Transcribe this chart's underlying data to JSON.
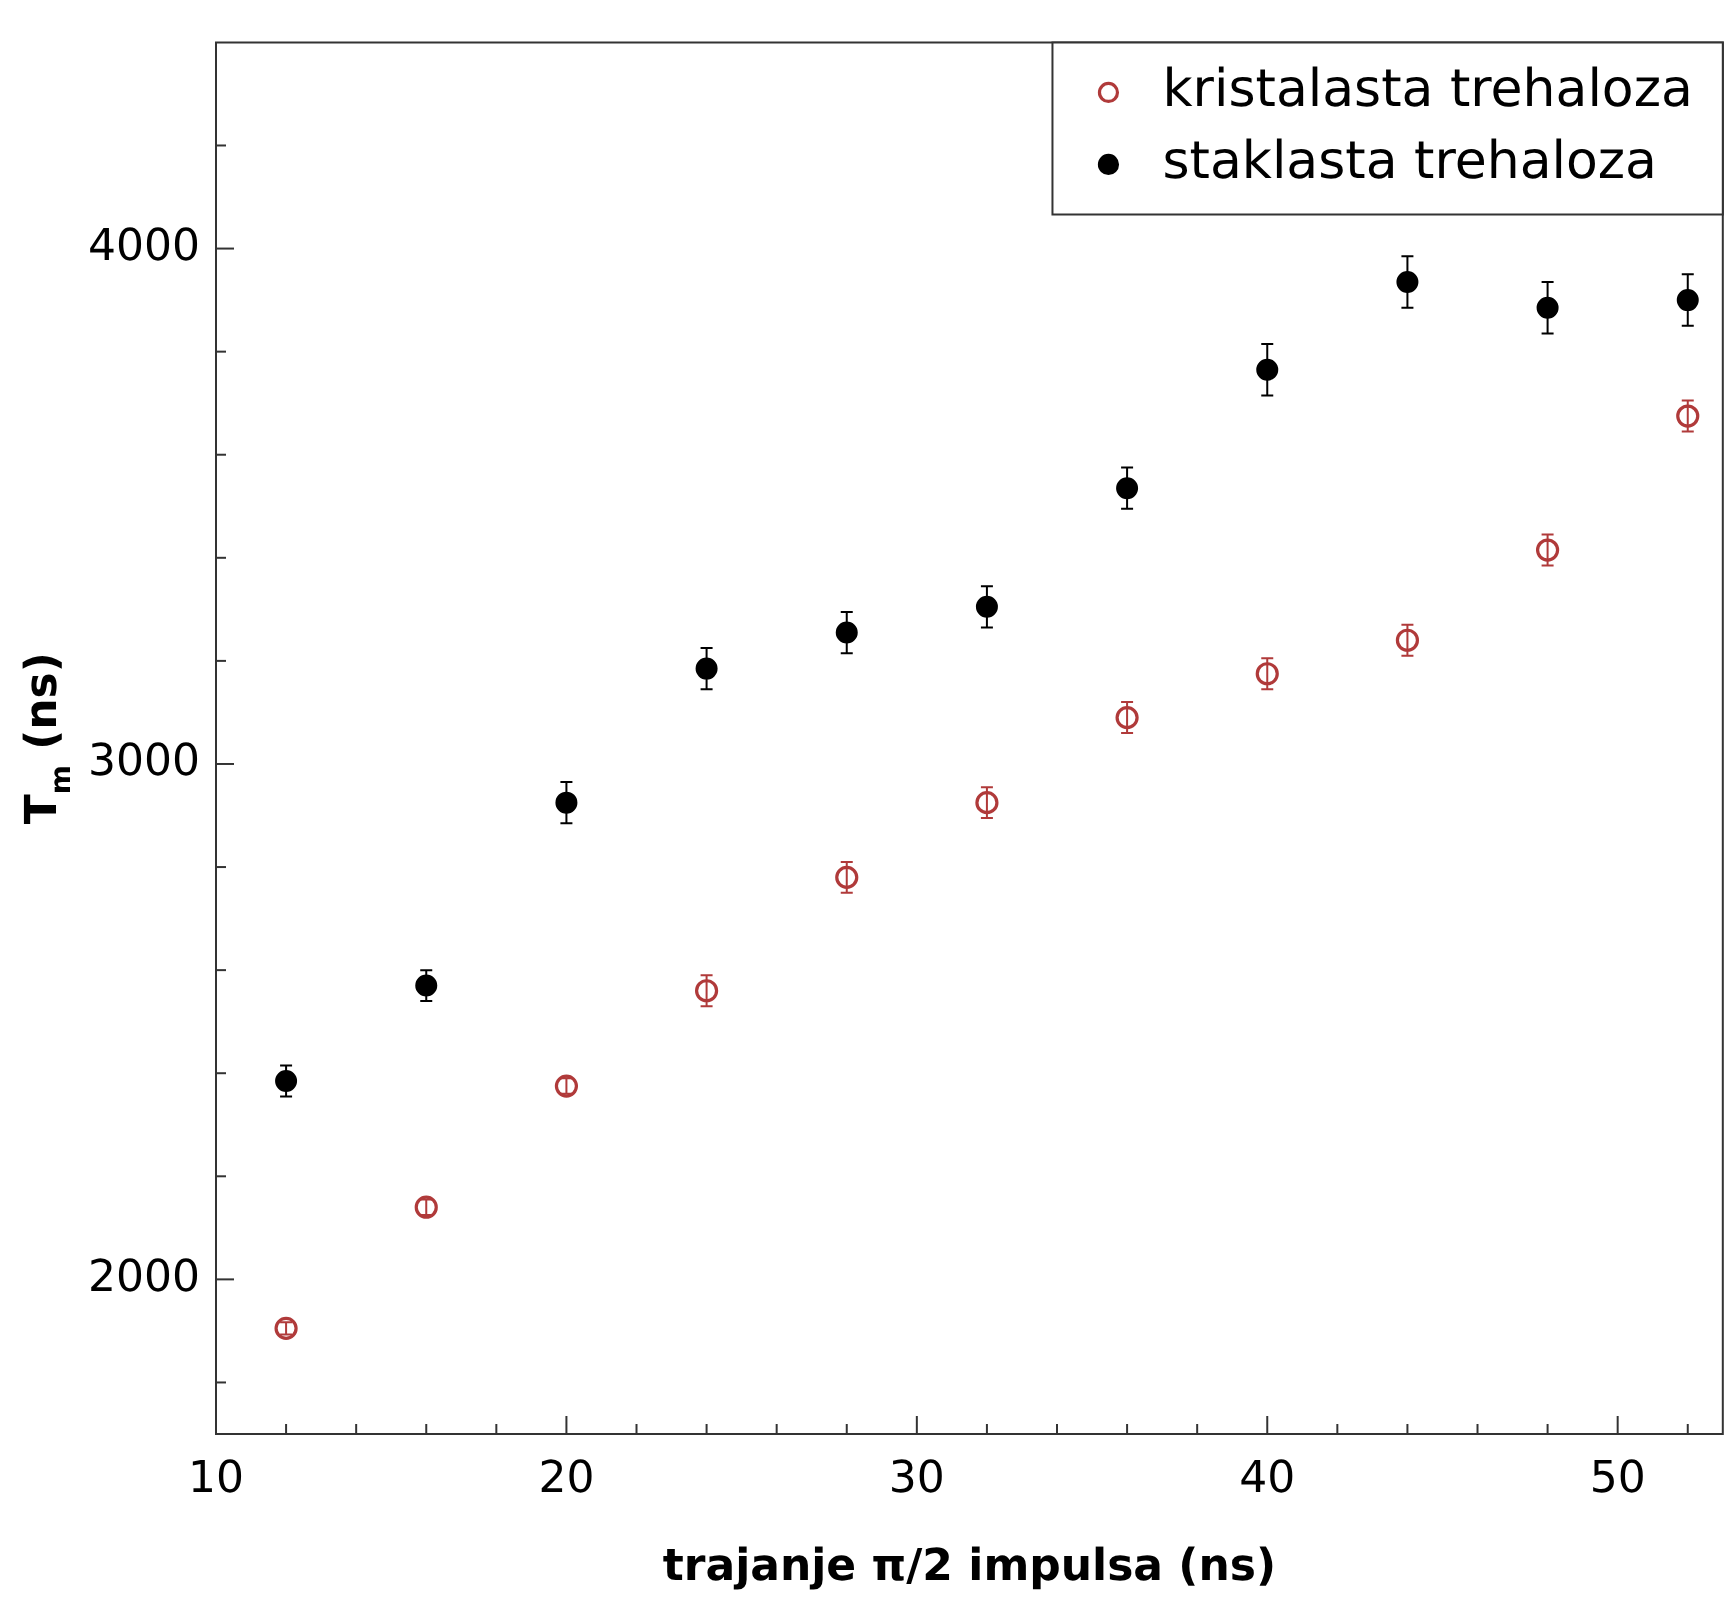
{
  "chart_data": {
    "type": "scatter",
    "xlabel": "trajanje π/2 impulsa (ns)",
    "ylabel": "T$_{m}$ (ns)",
    "x": [
      12,
      16,
      20,
      24,
      28,
      32,
      36,
      40,
      44,
      48,
      52
    ],
    "series": [
      {
        "name": "kristalasta trehaloza",
        "color": "#b03a3a",
        "marker": "circle_open",
        "values": [
          1905,
          2140,
          2375,
          2560,
          2780,
          2925,
          3090,
          3175,
          3240,
          3415,
          3675
        ],
        "errors": [
          12,
          15,
          15,
          30,
          30,
          30,
          30,
          30,
          30,
          30,
          30
        ]
      },
      {
        "name": "staklasta trehaloza",
        "color": "#000000",
        "marker": "circle",
        "values": [
          2385,
          2570,
          2925,
          3185,
          3255,
          3305,
          3535,
          3765,
          3935,
          3885,
          3900
        ],
        "errors": [
          30,
          30,
          40,
          40,
          40,
          40,
          40,
          50,
          50,
          50,
          50
        ]
      }
    ],
    "xlim": [
      10,
      53
    ],
    "xticks": [
      10,
      {
        "value": 12,
        "label": null
      },
      {
        "value": 14,
        "label": null
      },
      {
        "value": 16,
        "label": null
      },
      {
        "value": 18,
        "label": null
      },
      20,
      {
        "value": 22,
        "label": null
      },
      {
        "value": 24,
        "label": null
      },
      {
        "value": 26,
        "label": null
      },
      {
        "value": 28,
        "label": null
      },
      30,
      {
        "value": 32,
        "label": null
      },
      {
        "value": 34,
        "label": null
      },
      {
        "value": 36,
        "label": null
      },
      {
        "value": 38,
        "label": null
      },
      40,
      {
        "value": 42,
        "label": null
      },
      {
        "value": 44,
        "label": null
      },
      {
        "value": 46,
        "label": null
      },
      {
        "value": 48,
        "label": null
      },
      50,
      {
        "value": 52,
        "label": null
      }
    ],
    "ylim": [
      1700,
      4400
    ],
    "yticks": [
      {
        "value": 1800,
        "label": null
      },
      2000,
      {
        "value": 2200,
        "label": null
      },
      {
        "value": 2400,
        "label": null
      },
      {
        "value": 2600,
        "label": null
      },
      {
        "value": 2800,
        "label": null
      },
      3000,
      {
        "value": 3200,
        "label": null
      },
      {
        "value": 3400,
        "label": null
      },
      {
        "value": 3600,
        "label": null
      },
      {
        "value": 3800,
        "label": null
      },
      4000,
      {
        "value": 4200,
        "label": null
      }
    ],
    "grid": false,
    "legend": "top right"
  }
}
